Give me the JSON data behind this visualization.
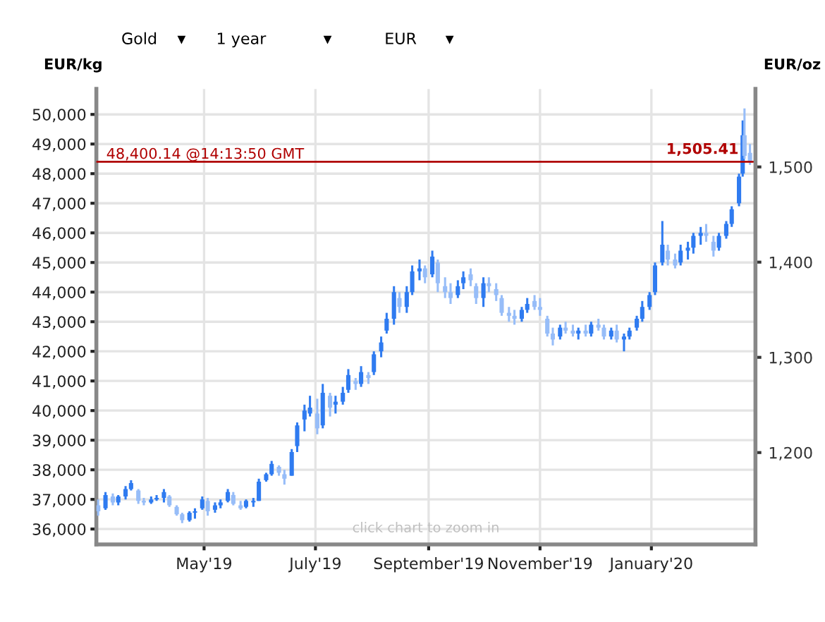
{
  "chart_data": {
    "type": "candlestick",
    "ylabel": "EUR/kg",
    "y2label": "EUR/oz",
    "x": [
      "2019-03-04",
      "2019-03-08",
      "2019-03-12",
      "2019-03-15",
      "2019-03-19",
      "2019-03-22",
      "2019-03-26",
      "2019-03-29",
      "2019-04-02",
      "2019-04-05",
      "2019-04-09",
      "2019-04-12",
      "2019-04-16",
      "2019-04-19",
      "2019-04-23",
      "2019-04-26",
      "2019-04-30",
      "2019-05-03",
      "2019-05-07",
      "2019-05-10",
      "2019-05-14",
      "2019-05-17",
      "2019-05-21",
      "2019-05-24",
      "2019-05-28",
      "2019-05-31",
      "2019-06-04",
      "2019-06-07",
      "2019-06-11",
      "2019-06-14",
      "2019-06-18",
      "2019-06-21",
      "2019-06-25",
      "2019-06-28",
      "2019-07-02",
      "2019-07-05",
      "2019-07-09",
      "2019-07-12",
      "2019-07-16",
      "2019-07-19",
      "2019-07-23",
      "2019-07-26",
      "2019-07-30",
      "2019-08-02",
      "2019-08-06",
      "2019-08-09",
      "2019-08-13",
      "2019-08-16",
      "2019-08-20",
      "2019-08-23",
      "2019-08-27",
      "2019-08-30",
      "2019-09-03",
      "2019-09-06",
      "2019-09-10",
      "2019-09-13",
      "2019-09-17",
      "2019-09-20",
      "2019-09-24",
      "2019-09-27",
      "2019-10-01",
      "2019-10-04",
      "2019-10-08",
      "2019-10-11",
      "2019-10-15",
      "2019-10-18",
      "2019-10-22",
      "2019-10-25",
      "2019-10-29",
      "2019-11-01",
      "2019-11-05",
      "2019-11-08",
      "2019-11-12",
      "2019-11-15",
      "2019-11-19",
      "2019-11-22",
      "2019-11-26",
      "2019-11-29",
      "2019-12-03",
      "2019-12-06",
      "2019-12-10",
      "2019-12-13",
      "2019-12-17",
      "2019-12-20",
      "2019-12-24",
      "2019-12-27",
      "2019-12-31",
      "2020-01-03",
      "2020-01-07",
      "2020-01-10",
      "2020-01-14",
      "2020-01-17",
      "2020-01-21",
      "2020-01-24",
      "2020-01-28",
      "2020-01-31",
      "2020-02-04",
      "2020-02-07",
      "2020-02-11",
      "2020-02-14",
      "2020-02-18",
      "2020-02-20",
      "2020-02-21",
      "2020-02-24"
    ],
    "series": [
      {
        "colors": [
          "#97bdf8",
          "#2f7bf0",
          "#97bdf8",
          "#2f7bf0",
          "#2f7bf0",
          "#2f7bf0",
          "#97bdf8",
          "#97bdf8",
          "#2f7bf0",
          "#2f7bf0",
          "#2f7bf0",
          "#97bdf8",
          "#97bdf8",
          "#97bdf8",
          "#2f7bf0",
          "#2f7bf0",
          "#2f7bf0",
          "#97bdf8",
          "#2f7bf0",
          "#2f7bf0",
          "#2f7bf0",
          "#97bdf8",
          "#97bdf8",
          "#2f7bf0",
          "#2f7bf0",
          "#2f7bf0",
          "#2f7bf0",
          "#2f7bf0",
          "#97bdf8",
          "#97bdf8",
          "#2f7bf0",
          "#2f7bf0",
          "#2f7bf0",
          "#2f7bf0",
          "#97bdf8",
          "#2f7bf0",
          "#97bdf8",
          "#2f7bf0",
          "#2f7bf0",
          "#2f7bf0",
          "#97bdf8",
          "#2f7bf0",
          "#97bdf8",
          "#2f7bf0",
          "#2f7bf0",
          "#2f7bf0",
          "#2f7bf0",
          "#97bdf8",
          "#2f7bf0",
          "#2f7bf0",
          "#2f7bf0",
          "#97bdf8",
          "#2f7bf0",
          "#97bdf8",
          "#97bdf8",
          "#97bdf8",
          "#2f7bf0",
          "#2f7bf0",
          "#97bdf8",
          "#97bdf8",
          "#2f7bf0",
          "#97bdf8",
          "#97bdf8",
          "#97bdf8",
          "#97bdf8",
          "#97bdf8",
          "#2f7bf0",
          "#2f7bf0",
          "#97bdf8",
          "#97bdf8",
          "#97bdf8",
          "#97bdf8",
          "#2f7bf0",
          "#97bdf8",
          "#97bdf8",
          "#2f7bf0",
          "#97bdf8",
          "#2f7bf0",
          "#97bdf8",
          "#97bdf8",
          "#2f7bf0",
          "#97bdf8",
          "#2f7bf0",
          "#2f7bf0",
          "#2f7bf0",
          "#2f7bf0",
          "#2f7bf0",
          "#2f7bf0",
          "#2f7bf0",
          "#97bdf8",
          "#97bdf8",
          "#2f7bf0",
          "#2f7bf0",
          "#2f7bf0",
          "#2f7bf0",
          "#97bdf8",
          "#97bdf8",
          "#2f7bf0",
          "#2f7bf0",
          "#2f7bf0",
          "#2f7bf0",
          "#2f7bf0",
          "#97bdf8",
          "#97bdf8"
        ],
        "ohlc": [
          [
            36800,
            37000,
            36450,
            36600
          ],
          [
            36700,
            37250,
            36650,
            37150
          ],
          [
            37100,
            37200,
            36800,
            36900
          ],
          [
            36900,
            37150,
            36800,
            37100
          ],
          [
            37100,
            37450,
            37000,
            37350
          ],
          [
            37350,
            37650,
            37300,
            37550
          ],
          [
            37300,
            37350,
            36850,
            36950
          ],
          [
            36950,
            37050,
            36800,
            36900
          ],
          [
            36900,
            37100,
            36850,
            37000
          ],
          [
            37000,
            37150,
            36950,
            37050
          ],
          [
            37050,
            37350,
            36900,
            37250
          ],
          [
            37100,
            37150,
            36750,
            36800
          ],
          [
            36750,
            36800,
            36450,
            36500
          ],
          [
            36500,
            36550,
            36200,
            36300
          ],
          [
            36300,
            36600,
            36250,
            36550
          ],
          [
            36550,
            36700,
            36350,
            36600
          ],
          [
            36700,
            37100,
            36650,
            37000
          ],
          [
            36950,
            37050,
            36450,
            36600
          ],
          [
            36650,
            36900,
            36550,
            36800
          ],
          [
            36800,
            37000,
            36700,
            36900
          ],
          [
            36950,
            37350,
            36900,
            37250
          ],
          [
            37150,
            37250,
            36800,
            36850
          ],
          [
            36800,
            36950,
            36650,
            36700
          ],
          [
            36750,
            37000,
            36700,
            36950
          ],
          [
            36900,
            37050,
            36750,
            36950
          ],
          [
            36950,
            37700,
            36950,
            37600
          ],
          [
            37650,
            37900,
            37600,
            37850
          ],
          [
            37850,
            38300,
            37800,
            38200
          ],
          [
            38100,
            38150,
            37800,
            37900
          ],
          [
            37850,
            38000,
            37500,
            37700
          ],
          [
            37800,
            38700,
            37800,
            38600
          ],
          [
            38800,
            39600,
            38600,
            39500
          ],
          [
            39700,
            40200,
            39300,
            40000
          ],
          [
            39900,
            40500,
            39800,
            40100
          ],
          [
            39900,
            40400,
            39200,
            39400
          ],
          [
            39500,
            40900,
            39400,
            40600
          ],
          [
            40500,
            40600,
            39800,
            40100
          ],
          [
            40200,
            40500,
            39900,
            40300
          ],
          [
            40300,
            40800,
            40200,
            40600
          ],
          [
            40700,
            41400,
            40600,
            41200
          ],
          [
            41000,
            41100,
            40700,
            40900
          ],
          [
            40900,
            41500,
            40800,
            41300
          ],
          [
            41200,
            41300,
            40900,
            41100
          ],
          [
            41300,
            42000,
            41200,
            41900
          ],
          [
            42000,
            42500,
            41800,
            42300
          ],
          [
            42700,
            43300,
            42600,
            43100
          ],
          [
            43100,
            44200,
            42900,
            44000
          ],
          [
            43800,
            44000,
            43300,
            43500
          ],
          [
            43500,
            44200,
            43300,
            44000
          ],
          [
            44000,
            44900,
            43900,
            44700
          ],
          [
            44700,
            45100,
            44400,
            44800
          ],
          [
            44800,
            44900,
            44300,
            44500
          ],
          [
            44600,
            45400,
            44500,
            45200
          ],
          [
            45000,
            45100,
            44000,
            44300
          ],
          [
            44200,
            44500,
            43800,
            44000
          ],
          [
            44000,
            44300,
            43600,
            43800
          ],
          [
            43900,
            44400,
            43800,
            44200
          ],
          [
            44300,
            44700,
            44100,
            44500
          ],
          [
            44600,
            44800,
            44200,
            44400
          ],
          [
            44200,
            44300,
            43600,
            43800
          ],
          [
            43800,
            44500,
            43500,
            44300
          ],
          [
            44300,
            44500,
            44000,
            44200
          ],
          [
            44100,
            44300,
            43700,
            43900
          ],
          [
            43800,
            43900,
            43200,
            43300
          ],
          [
            43300,
            43500,
            43000,
            43200
          ],
          [
            43200,
            43400,
            42900,
            43100
          ],
          [
            43100,
            43500,
            43000,
            43400
          ],
          [
            43400,
            43800,
            43300,
            43600
          ],
          [
            43700,
            43900,
            43400,
            43500
          ],
          [
            43500,
            43800,
            43200,
            43400
          ],
          [
            43100,
            43200,
            42500,
            42600
          ],
          [
            42600,
            42800,
            42200,
            42400
          ],
          [
            42500,
            42900,
            42400,
            42800
          ],
          [
            42800,
            43000,
            42600,
            42700
          ],
          [
            42700,
            42900,
            42500,
            42600
          ],
          [
            42600,
            42800,
            42400,
            42700
          ],
          [
            42700,
            42900,
            42500,
            42600
          ],
          [
            42600,
            43000,
            42500,
            42900
          ],
          [
            42900,
            43100,
            42700,
            42800
          ],
          [
            42800,
            42900,
            42400,
            42500
          ],
          [
            42500,
            42800,
            42400,
            42700
          ],
          [
            42700,
            42900,
            42300,
            42400
          ],
          [
            42400,
            42600,
            42000,
            42500
          ],
          [
            42500,
            42800,
            42400,
            42700
          ],
          [
            42800,
            43200,
            42700,
            43100
          ],
          [
            43100,
            43700,
            43000,
            43500
          ],
          [
            43500,
            44000,
            43400,
            43900
          ],
          [
            44000,
            45000,
            43900,
            44900
          ],
          [
            45000,
            46400,
            44900,
            45600
          ],
          [
            45400,
            45600,
            44900,
            45100
          ],
          [
            45100,
            45300,
            44800,
            44900
          ],
          [
            45000,
            45600,
            44900,
            45400
          ],
          [
            45400,
            45700,
            45100,
            45500
          ],
          [
            45500,
            46000,
            45300,
            45900
          ],
          [
            45900,
            46200,
            45600,
            46000
          ],
          [
            46000,
            46300,
            45700,
            45900
          ],
          [
            45700,
            45900,
            45200,
            45400
          ],
          [
            45500,
            46000,
            45400,
            45900
          ],
          [
            45900,
            46400,
            45800,
            46300
          ],
          [
            46300,
            46900,
            46200,
            46800
          ],
          [
            47000,
            48000,
            46900,
            47900
          ],
          [
            48000,
            49800,
            47900,
            49300
          ],
          [
            49300,
            50200,
            48500,
            48600
          ],
          [
            48700,
            49000,
            48300,
            48400
          ]
        ]
      }
    ],
    "xlim": [
      "2019-03-03",
      "2020-02-27"
    ],
    "xticks": [
      {
        "value": "2019-05-01",
        "label": "May'19"
      },
      {
        "value": "2019-07-01",
        "label": "July'19"
      },
      {
        "value": "2019-09-01",
        "label": "September'19"
      },
      {
        "value": "2019-11-01",
        "label": "November'19"
      },
      {
        "value": "2020-01-01",
        "label": "January'20"
      }
    ],
    "ylim": [
      35480,
      50860
    ],
    "yticks": [
      {
        "value": 36000,
        "label": "36,000"
      },
      {
        "value": 37000,
        "label": "37,000"
      },
      {
        "value": 38000,
        "label": "38,000"
      },
      {
        "value": 39000,
        "label": "39,000"
      },
      {
        "value": 40000,
        "label": "40,000"
      },
      {
        "value": 41000,
        "label": "41,000"
      },
      {
        "value": 42000,
        "label": "42,000"
      },
      {
        "value": 43000,
        "label": "43,000"
      },
      {
        "value": 44000,
        "label": "44,000"
      },
      {
        "value": 45000,
        "label": "45,000"
      },
      {
        "value": 46000,
        "label": "46,000"
      },
      {
        "value": 47000,
        "label": "47,000"
      },
      {
        "value": 48000,
        "label": "48,000"
      },
      {
        "value": 49000,
        "label": "49,000"
      },
      {
        "value": 50000,
        "label": "50,000"
      }
    ],
    "y2lim": [
      1103.5,
      1581.9
    ],
    "y2ticks": [
      {
        "value": 1200,
        "label": "1,200"
      },
      {
        "value": 1300,
        "label": "1,300"
      },
      {
        "value": 1400,
        "label": "1,400"
      },
      {
        "value": 1500,
        "label": "1,500"
      }
    ],
    "ref_lines": [
      {
        "axis": "y",
        "value": 48400.14,
        "label": "48,400.14 @14:13:50 GMT",
        "color": "#b00000"
      }
    ],
    "annotations": [
      {
        "text": "1,505.41",
        "x": "2020-02-21",
        "y": 48400.14
      },
      "click chart to zoom in",
      "Gold",
      "▼",
      "1 year",
      "▼",
      "EUR",
      "▼"
    ],
    "grid": true
  }
}
